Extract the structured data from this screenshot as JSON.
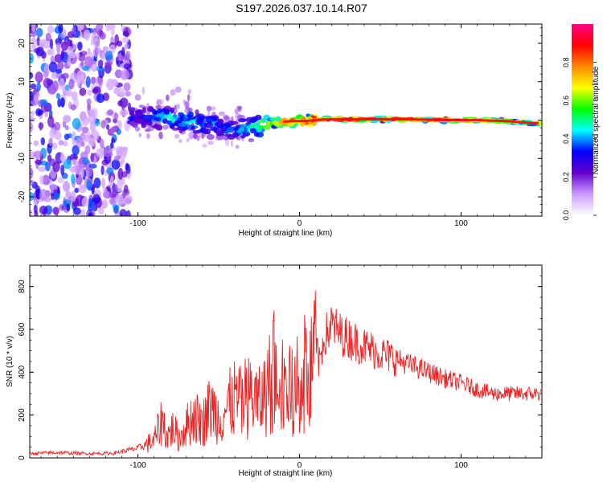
{
  "figure": {
    "title": "S197.2026.037.10.14.R07"
  },
  "chart_data": [
    {
      "type": "heatmap",
      "name": "spectrogram",
      "title": "",
      "xlabel": "Height of straight line (km)",
      "ylabel": "Frequency (Hz)",
      "xlim": [
        -167,
        150
      ],
      "ylim": [
        -25,
        25
      ],
      "xticks": [
        -100,
        0,
        100
      ],
      "yticks": [
        -20,
        -10,
        0,
        10,
        20
      ],
      "xtick_labels": [
        "-100",
        "0",
        "100"
      ],
      "ytick_labels": [
        "-20",
        "-10",
        "0",
        "10",
        "20"
      ],
      "colorbar": {
        "label": "Normalized spectral amplitude",
        "range": [
          0,
          1
        ],
        "ticks": [
          0.0,
          0.2,
          0.4,
          0.6,
          0.8
        ],
        "tick_labels": [
          "0.0",
          "0.2",
          "0.4",
          "0.6",
          "0.8"
        ],
        "colormap": [
          "#ffffff",
          "#cc99ff",
          "#6600cc",
          "#0000ff",
          "#00ffff",
          "#00ff00",
          "#ffff00",
          "#ff8800",
          "#ff0000",
          "#ff0088"
        ]
      },
      "ridge": [
        {
          "x": -100,
          "y": 0.8,
          "amp": 0.3
        },
        {
          "x": -80,
          "y": 0.5,
          "amp": 0.45
        },
        {
          "x": -60,
          "y": -0.8,
          "amp": 0.4
        },
        {
          "x": -40,
          "y": -2.5,
          "amp": 0.35
        },
        {
          "x": -25,
          "y": -1.5,
          "amp": 0.5
        },
        {
          "x": -15,
          "y": -0.5,
          "amp": 0.7
        },
        {
          "x": -5,
          "y": -0.3,
          "amp": 0.8
        },
        {
          "x": 5,
          "y": -0.2,
          "amp": 0.85
        },
        {
          "x": 15,
          "y": 0.2,
          "amp": 0.95
        },
        {
          "x": 40,
          "y": 0.2,
          "amp": 0.96
        },
        {
          "x": 70,
          "y": 0.2,
          "amp": 0.95
        },
        {
          "x": 90,
          "y": 0.0,
          "amp": 0.9
        },
        {
          "x": 110,
          "y": 0.0,
          "amp": 0.8
        },
        {
          "x": 130,
          "y": -0.3,
          "amp": 0.7
        },
        {
          "x": 145,
          "y": -0.8,
          "amp": 0.6
        }
      ]
    },
    {
      "type": "line",
      "name": "snr",
      "title": "",
      "xlabel": "Height of straight line (km)",
      "ylabel": "SNR (10 * v/v)",
      "xlim": [
        -167,
        150
      ],
      "ylim": [
        0,
        900
      ],
      "xticks": [
        -100,
        0,
        100
      ],
      "yticks": [
        0,
        200,
        400,
        600,
        800
      ],
      "xtick_labels": [
        "-100",
        "0",
        "100"
      ],
      "ytick_labels": [
        "0",
        "200",
        "400",
        "600",
        "800"
      ],
      "series": [
        {
          "name": "SNR",
          "color": "#ee2222",
          "x": [
            -167,
            -150,
            -130,
            -115,
            -100,
            -90,
            -85,
            -82,
            -78,
            -75,
            -70,
            -65,
            -60,
            -55,
            -50,
            -45,
            -40,
            -35,
            -30,
            -25,
            -20,
            -15,
            -12,
            -10,
            -8,
            -5,
            -2,
            0,
            3,
            6,
            9,
            12,
            15,
            20,
            25,
            30,
            40,
            50,
            60,
            70,
            80,
            90,
            100,
            110,
            120,
            130,
            140,
            150
          ],
          "values": [
            20,
            25,
            20,
            22,
            45,
            80,
            180,
            100,
            140,
            90,
            150,
            200,
            160,
            240,
            190,
            230,
            280,
            240,
            300,
            250,
            320,
            430,
            260,
            380,
            330,
            300,
            420,
            370,
            380,
            250,
            600,
            430,
            560,
            620,
            580,
            560,
            520,
            490,
            460,
            430,
            400,
            370,
            350,
            320,
            300,
            300,
            300,
            300
          ]
        }
      ]
    }
  ]
}
